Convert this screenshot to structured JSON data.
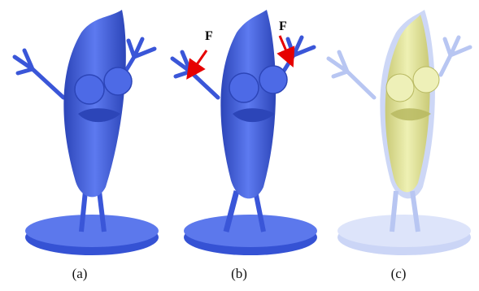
{
  "panels": [
    {
      "caption": "(a)"
    },
    {
      "caption": "(b)",
      "force_label_left": "F",
      "force_label_right": "F"
    },
    {
      "caption": "(c)"
    }
  ],
  "colors": {
    "model_blue": "#4d6ae6",
    "model_blue_dark": "#2c45b8",
    "model_transparent": "#b8c6f2",
    "inner_yellow": "#e6e89a",
    "arrow_red": "#e60000"
  }
}
